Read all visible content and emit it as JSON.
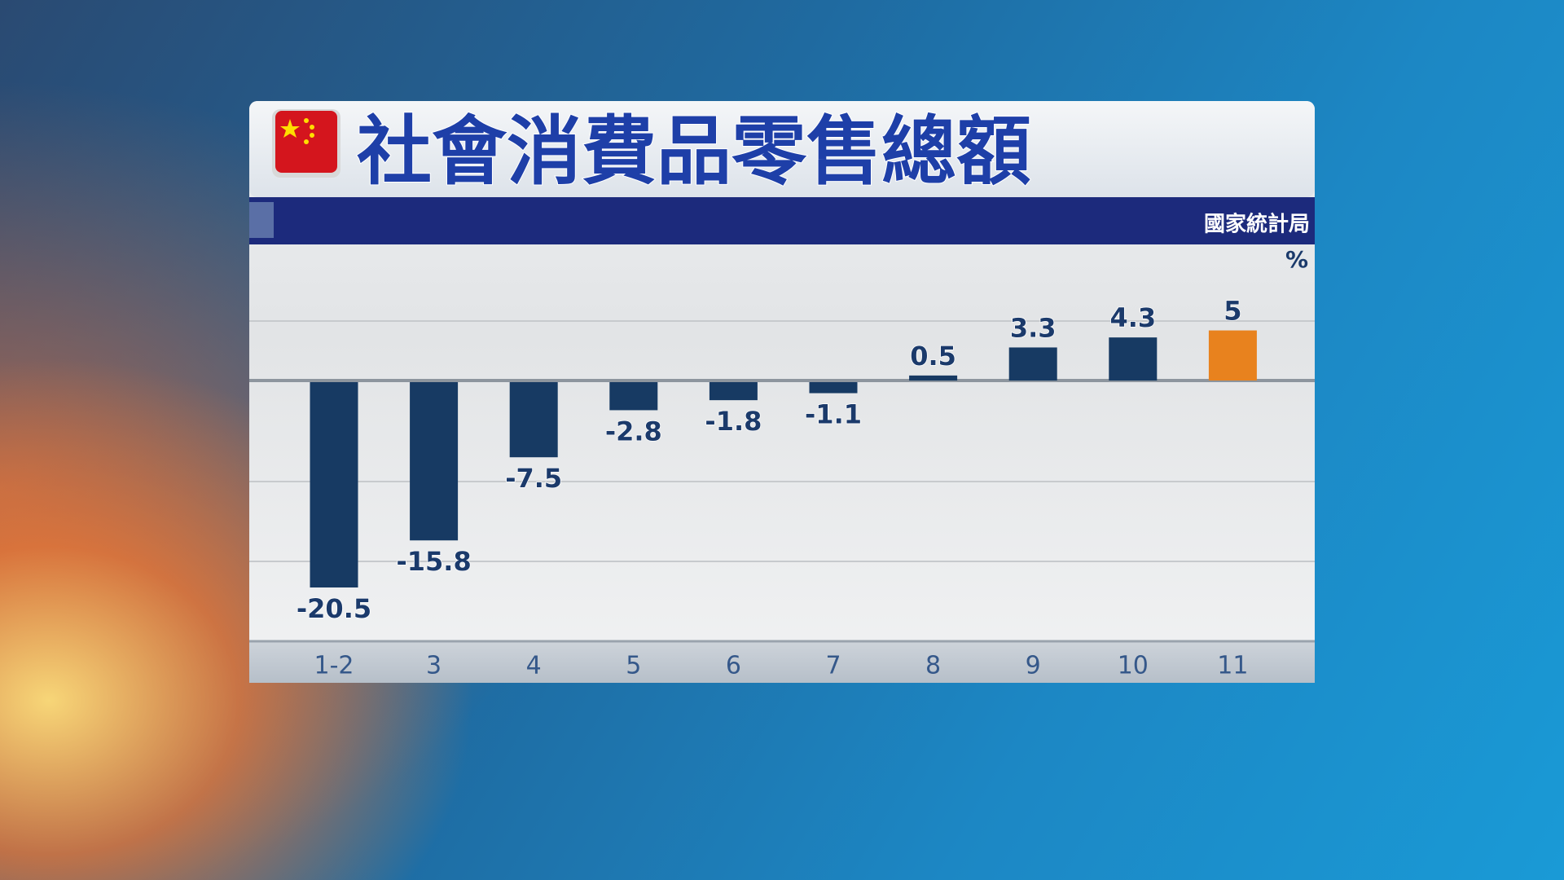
{
  "chart_data": {
    "type": "bar",
    "title": "社會消費品零售總額",
    "source": "國家統計局",
    "unit": "%",
    "categories": [
      "1-2",
      "3",
      "4",
      "5",
      "6",
      "7",
      "8",
      "9",
      "10",
      "11"
    ],
    "values": [
      -20.5,
      -15.8,
      -7.5,
      -2.8,
      -1.8,
      -1.1,
      0.5,
      3.3,
      4.3,
      5
    ],
    "colors": [
      "#173a63",
      "#173a63",
      "#173a63",
      "#173a63",
      "#173a63",
      "#173a63",
      "#173a63",
      "#173a63",
      "#173a63",
      "#e8821e"
    ]
  }
}
